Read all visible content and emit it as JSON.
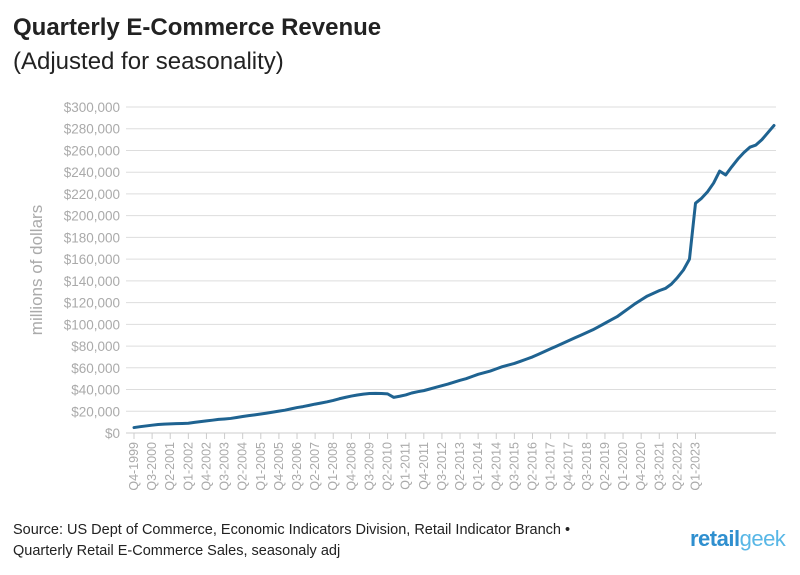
{
  "header": {
    "title": "Quarterly E-Commerce Revenue",
    "subtitle": "(Adjusted for seasonality)"
  },
  "footer": {
    "line1": "Source: US Dept of Commerce, Economic Indicators Division, Retail Indicator Branch •",
    "line2": "Quarterly Retail E-Commerce Sales, seasonaly adj"
  },
  "logo": {
    "part1": "retail",
    "part2": "geek"
  },
  "colors": {
    "line": "#1f6391",
    "grid": "#dddddd",
    "axis_text": "#aaaaaa"
  },
  "chart_data": {
    "type": "line",
    "title": "Quarterly E-Commerce Revenue",
    "subtitle": "(Adjusted for seasonality)",
    "xlabel": "",
    "ylabel": "millions of dollars",
    "ylim": [
      0,
      300000
    ],
    "yticks": [
      0,
      20000,
      40000,
      60000,
      80000,
      100000,
      120000,
      140000,
      160000,
      180000,
      200000,
      220000,
      240000,
      260000,
      280000,
      300000
    ],
    "ytick_labels": [
      "$0",
      "$20,000",
      "$40,000",
      "$60,000",
      "$80,000",
      "$100,000",
      "$120,000",
      "$140,000",
      "$160,000",
      "$180,000",
      "$200,000",
      "$220,000",
      "$240,000",
      "$260,000",
      "$280,000",
      "$300,000"
    ],
    "grid": true,
    "x_start": "Q4-1999",
    "x_tick_labels": [
      "Q4-1999",
      "Q3-2000",
      "Q2-2001",
      "Q1-2002",
      "Q4-2002",
      "Q3-2003",
      "Q2-2004",
      "Q1-2005",
      "Q4-2005",
      "Q3-2006",
      "Q2-2007",
      "Q1-2008",
      "Q4-2008",
      "Q3-2009",
      "Q2-2010",
      "Q1-2011",
      "Q4-2011",
      "Q3-2012",
      "Q2-2013",
      "Q1-2014",
      "Q4-2014",
      "Q3-2015",
      "Q2-2016",
      "Q1-2017",
      "Q4-2017",
      "Q3-2018",
      "Q2-2019",
      "Q1-2020",
      "Q4-2020",
      "Q3-2021",
      "Q2-2022",
      "Q1-2023"
    ],
    "series": [
      {
        "name": "Quarterly Retail E-Commerce Sales",
        "values": [
          5000,
          5800,
          6500,
          7200,
          7800,
          8200,
          8400,
          8600,
          8800,
          9000,
          9800,
          10500,
          11200,
          11800,
          12500,
          12900,
          13400,
          14300,
          15200,
          16000,
          16700,
          17500,
          18300,
          19200,
          20100,
          21000,
          22200,
          23400,
          24300,
          25400,
          26600,
          27600,
          28700,
          30000,
          31500,
          32800,
          34000,
          35000,
          35800,
          36300,
          36500,
          36400,
          36000,
          32800,
          33800,
          35000,
          36800,
          38000,
          39000,
          40500,
          42000,
          43500,
          45000,
          46800,
          48500,
          50000,
          52000,
          54000,
          55500,
          57000,
          59000,
          61000,
          62500,
          64000,
          66000,
          68000,
          70000,
          72500,
          75000,
          77500,
          80000,
          82500,
          85000,
          87500,
          90000,
          92500,
          95000,
          98000,
          101000,
          104000,
          107000,
          111000,
          115000,
          119000,
          122500,
          126000,
          128500,
          131000,
          133000,
          137000,
          143000,
          150000,
          160000,
          211500,
          216000,
          222000,
          230000,
          241000,
          237500,
          245000,
          252000,
          258000,
          263000,
          265000,
          270000,
          276500,
          283000
        ]
      }
    ]
  }
}
